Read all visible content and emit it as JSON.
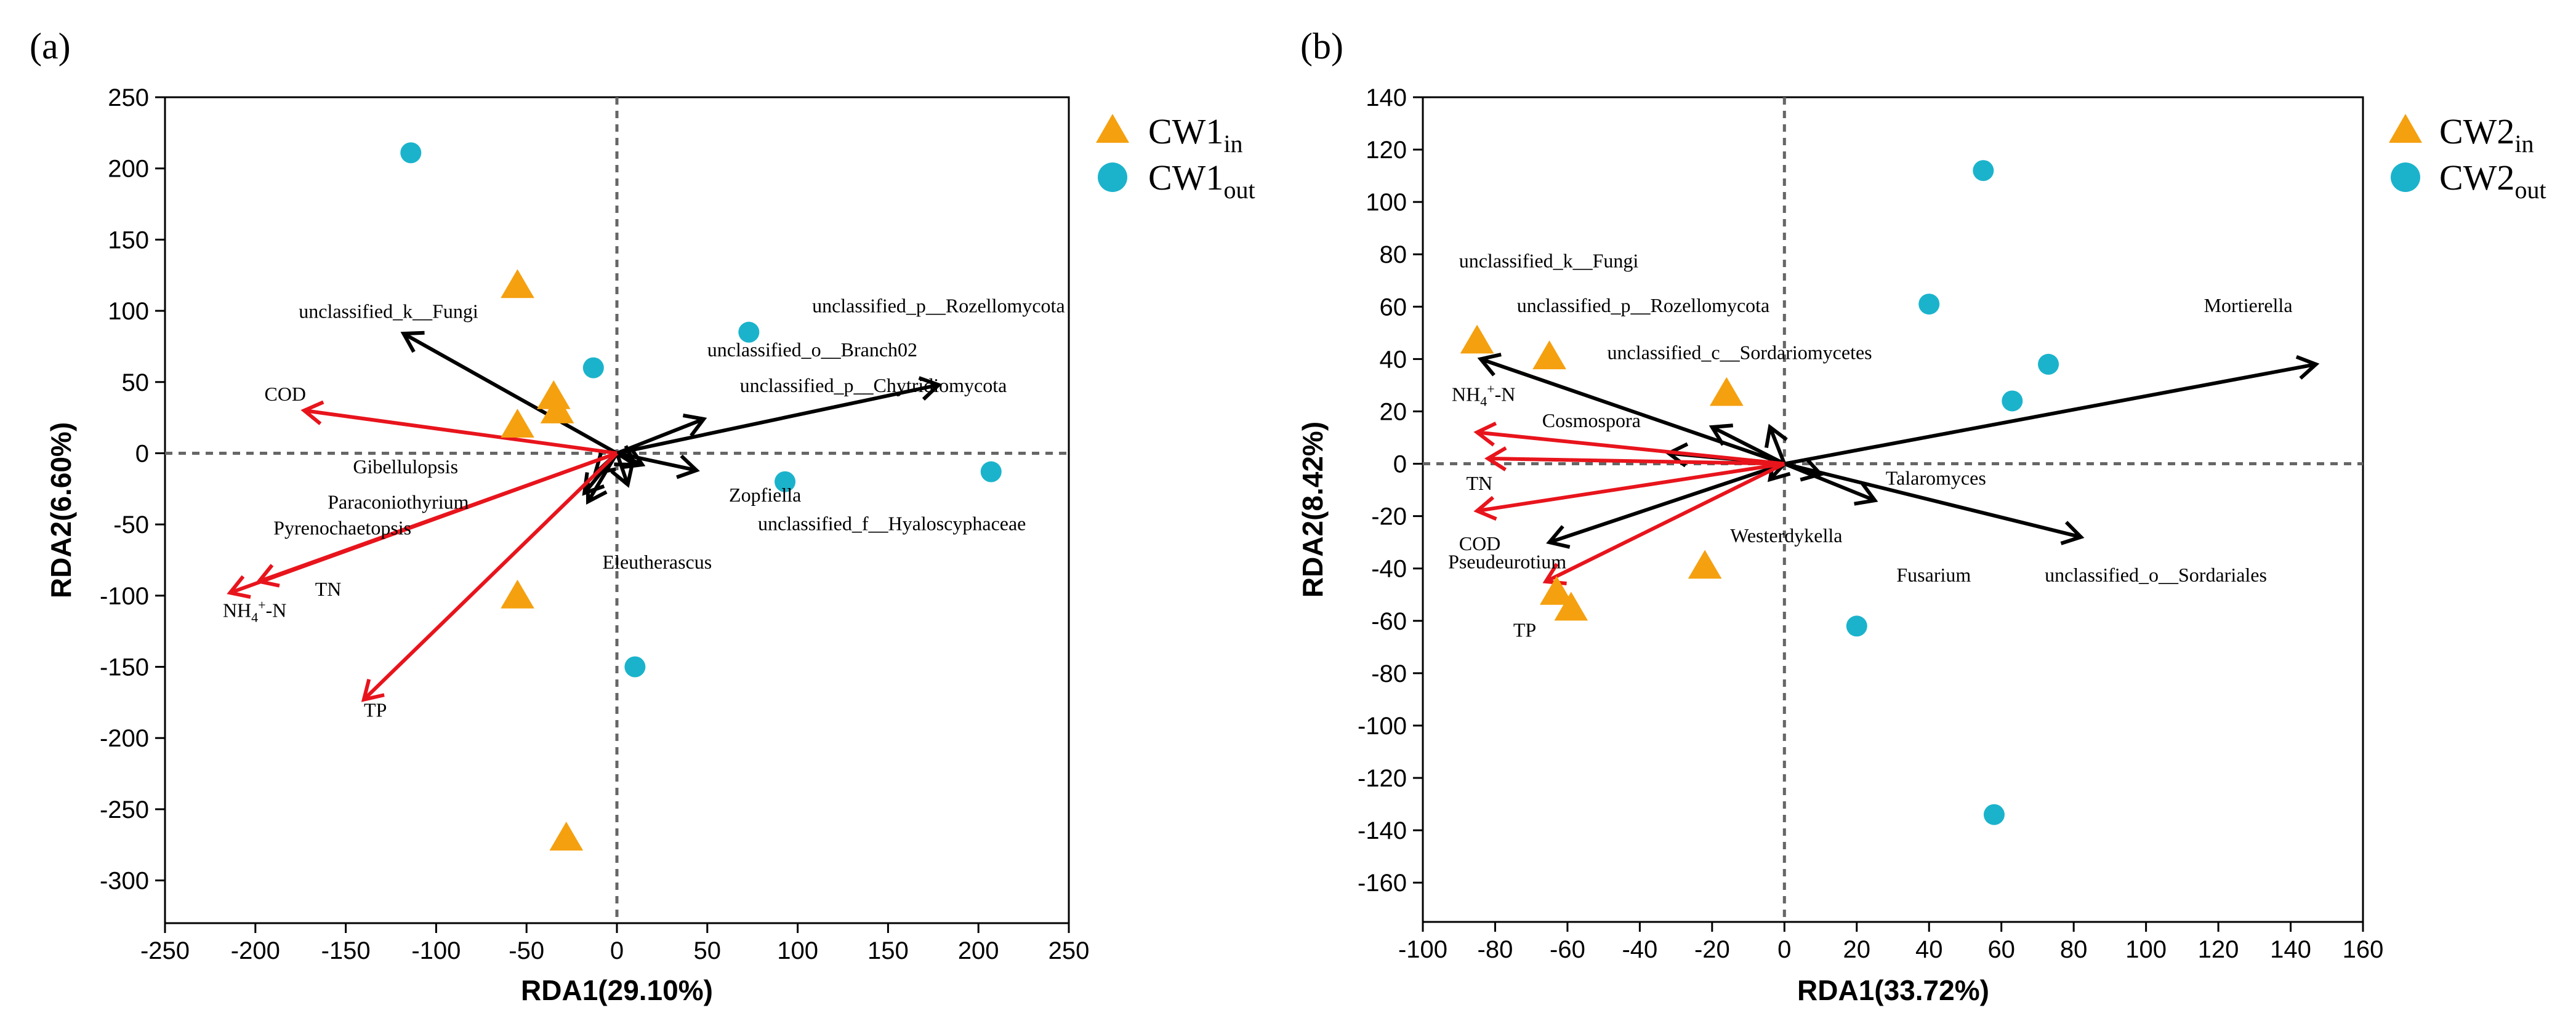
{
  "chart_data": [
    {
      "panel": "(a)",
      "type": "scatter",
      "subtype": "rda_biplot",
      "xlabel": "RDA1(29.10%)",
      "ylabel": "RDA2(6.60%)",
      "xlim": [
        -250,
        250
      ],
      "ylim": [
        -330,
        250
      ],
      "xticks": [
        -250,
        -200,
        -150,
        -100,
        -50,
        0,
        50,
        100,
        150,
        200,
        250
      ],
      "yticks": [
        -300,
        -250,
        -200,
        -150,
        -100,
        -50,
        0,
        50,
        100,
        150,
        200,
        250
      ],
      "legend_position": "right",
      "legend": [
        {
          "base": "CW1",
          "sub": "in",
          "marker": "triangle",
          "color": "#F5A00F"
        },
        {
          "base": "CW1",
          "sub": "out",
          "marker": "circle",
          "color": "#1BB3CC"
        }
      ],
      "groups": [
        {
          "name": "CW1in",
          "marker": "triangle",
          "color": "#F5A00F",
          "points": [
            [
              -55,
              118
            ],
            [
              -35,
              40
            ],
            [
              -33,
              30
            ],
            [
              -55,
              20
            ],
            [
              -55,
              -100
            ],
            [
              -28,
              -270
            ]
          ]
        },
        {
          "name": "CW1out",
          "marker": "circle",
          "color": "#1BB3CC",
          "points": [
            [
              -114,
              211
            ],
            [
              -13,
              60
            ],
            [
              73,
              85
            ],
            [
              93,
              -20
            ],
            [
              207,
              -13
            ],
            [
              10,
              -150
            ]
          ]
        }
      ],
      "env_vectors": [
        {
          "text": "COD",
          "base": "COD",
          "sup": "",
          "sub": "",
          "tail": "",
          "end": [
            -173,
            30
          ],
          "label": [
            -195,
            37
          ]
        },
        {
          "text": "TN",
          "base": "TN",
          "sup": "",
          "sub": "",
          "tail": "",
          "end": [
            -198,
            -90
          ],
          "label": [
            -167,
            -100
          ]
        },
        {
          "text": "NH4+-N",
          "base": "NH",
          "sub": "4",
          "sup": "+",
          "tail": "-N",
          "end": [
            -214,
            -98
          ],
          "label": [
            -218,
            -115
          ]
        },
        {
          "text": "TP",
          "base": "TP",
          "sup": "",
          "sub": "",
          "tail": "",
          "end": [
            -140,
            -173
          ],
          "label": [
            -140,
            -185
          ]
        }
      ],
      "species_vectors": [
        {
          "text": "unclassified_k__Fungi",
          "end": [
            -118,
            84
          ],
          "label": [
            -176,
            95
          ],
          "label_x": ""
        },
        {
          "text": "unclassified_p__Rozellomycota",
          "end": [
            178,
            48
          ],
          "label": [
            108,
            99
          ],
          "label_x": ""
        },
        {
          "text": "unclassified_o__Branch02",
          "end": [
            48,
            24
          ],
          "label": [
            50,
            68
          ],
          "label_x": ""
        },
        {
          "text": "unclassified_p__Chytridiomycota",
          "end": [
            44,
            -12
          ],
          "label": [
            68,
            43
          ],
          "label_x": ""
        },
        {
          "text": "Gibellulopsis",
          "end": [
            -12,
            -14
          ],
          "label": [
            -146,
            -14
          ],
          "label_x": ""
        },
        {
          "text": "Paraconiothyrium",
          "end": [
            -18,
            -28
          ],
          "label": [
            -160,
            -39
          ],
          "label_x": ""
        },
        {
          "text": "Pyrenochaetopsis",
          "end": [
            6,
            -22
          ],
          "label": [
            -190,
            -57
          ],
          "label_x": ""
        },
        {
          "text": "Zopfiella",
          "end": [
            -16,
            -34
          ],
          "label": [
            62,
            -34
          ],
          "label_x": ""
        },
        {
          "text": "unclassified_f__Hyaloscyphaceae",
          "end": [
            14,
            -8
          ],
          "label": [
            78,
            -54
          ],
          "label_x": ""
        },
        {
          "text": "Eleutherascus",
          "end": [
            10,
            -8
          ],
          "label": [
            -8,
            -81
          ],
          "label_x": ""
        }
      ]
    },
    {
      "panel": "(b)",
      "type": "scatter",
      "subtype": "rda_biplot",
      "xlabel": "RDA1(33.72%)",
      "ylabel": "RDA2(8.42%)",
      "xlim": [
        -100,
        160
      ],
      "ylim": [
        -175,
        140
      ],
      "xticks": [
        -100,
        -80,
        -60,
        -40,
        -20,
        0,
        20,
        40,
        60,
        80,
        100,
        120,
        140,
        160
      ],
      "yticks": [
        -160,
        -140,
        -120,
        -100,
        -80,
        -60,
        -40,
        -20,
        0,
        20,
        40,
        60,
        80,
        100,
        120,
        140
      ],
      "legend_position": "right",
      "legend": [
        {
          "base": "CW2",
          "sub": "in",
          "marker": "triangle",
          "color": "#F5A00F"
        },
        {
          "base": "CW2",
          "sub": "out",
          "marker": "circle",
          "color": "#1BB3CC"
        }
      ],
      "groups": [
        {
          "name": "CW2in",
          "marker": "triangle",
          "color": "#F5A00F",
          "points": [
            [
              -85,
              47
            ],
            [
              -65,
              41
            ],
            [
              -16,
              27
            ],
            [
              -22,
              -39
            ],
            [
              -63,
              -49
            ],
            [
              -59,
              -55
            ]
          ]
        },
        {
          "name": "CW2out",
          "marker": "circle",
          "color": "#1BB3CC",
          "points": [
            [
              55,
              112
            ],
            [
              40,
              61
            ],
            [
              73,
              38
            ],
            [
              63,
              24
            ],
            [
              20,
              -62
            ],
            [
              58,
              -134
            ]
          ]
        }
      ],
      "env_vectors": [
        {
          "text": "NH4+-N",
          "base": "NH",
          "sub": "4",
          "sup": "+",
          "tail": "-N",
          "end": [
            -85,
            12
          ],
          "label": [
            -92,
            24
          ]
        },
        {
          "text": "TN",
          "base": "TN",
          "sup": "",
          "sub": "",
          "tail": "",
          "end": [
            -82,
            2
          ],
          "label": [
            -88,
            -10
          ]
        },
        {
          "text": "COD",
          "base": "COD",
          "sup": "",
          "sub": "",
          "tail": "",
          "end": [
            -85,
            -18
          ],
          "label": [
            -90,
            -33
          ]
        },
        {
          "text": "TP",
          "base": "TP",
          "sup": "",
          "sub": "",
          "tail": "",
          "end": [
            -66,
            -45
          ],
          "label": [
            -75,
            -66
          ]
        }
      ],
      "species_vectors": [
        {
          "text": "unclassified_k__Fungi",
          "end": [
            -84,
            40
          ],
          "label": [
            -90,
            75
          ],
          "label_x": ""
        },
        {
          "text": "unclassified_p__Rozellomycota",
          "end": [
            -20,
            14
          ],
          "label": [
            -74,
            58
          ],
          "label_x": ""
        },
        {
          "text": "unclassified_c__Sordariomycetes",
          "end": [
            -4,
            14
          ],
          "label": [
            -49,
            40
          ],
          "label_x": ""
        },
        {
          "text": "Cosmospora",
          "end": [
            -32,
            4
          ],
          "label": [
            -67,
            14
          ],
          "label_x": ""
        },
        {
          "text": "Pseudeurotium",
          "end": [
            -65,
            -30
          ],
          "label": [
            -93,
            -40
          ],
          "label_x": ""
        },
        {
          "text": "Mortierella",
          "end": [
            147,
            38
          ],
          "label": [
            116,
            58
          ],
          "label_x": ""
        },
        {
          "text": "Talaromyces",
          "end": [
            10,
            -4
          ],
          "label": [
            28,
            -8
          ],
          "label_x": ""
        },
        {
          "text": "Westerdykella",
          "end": [
            -4,
            -6
          ],
          "label": [
            -15,
            -30
          ],
          "label_x": ""
        },
        {
          "text": "Fusarium",
          "end": [
            25,
            -14
          ],
          "label": [
            31,
            -45
          ],
          "label_x": ""
        },
        {
          "text": "unclassified_o__Sordariales",
          "end": [
            82,
            -28
          ],
          "label": [
            72,
            -45
          ],
          "label_x": ""
        }
      ]
    }
  ]
}
